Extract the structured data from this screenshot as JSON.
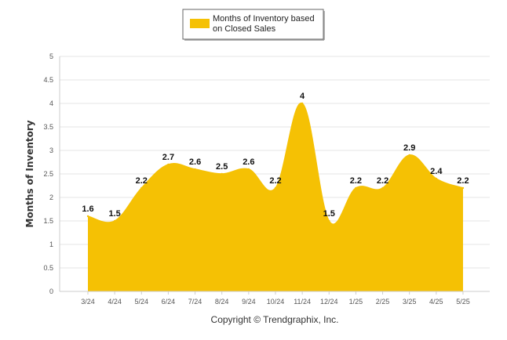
{
  "chart_data": {
    "type": "area",
    "categories": [
      "3/24",
      "4/24",
      "5/24",
      "6/24",
      "7/24",
      "8/24",
      "9/24",
      "10/24",
      "11/24",
      "12/24",
      "1/25",
      "2/25",
      "3/25",
      "4/25",
      "5/25"
    ],
    "series": [
      {
        "name": "Months of Inventory based on Closed Sales",
        "values": [
          1.6,
          1.5,
          2.2,
          2.7,
          2.6,
          2.5,
          2.6,
          2.2,
          4,
          1.5,
          2.2,
          2.2,
          2.9,
          2.4,
          2.2
        ],
        "labels": [
          "1.6",
          "1.5",
          "2.2",
          "2.7",
          "2.6",
          "2.5",
          "2.6",
          "2.2",
          "4",
          "1.5",
          "2.2",
          "2.2",
          "2.9",
          "2.4",
          "2.2"
        ],
        "color": "#F5C104"
      }
    ],
    "ylabel": "Months of Inventory",
    "xlabel": "",
    "ylim": [
      0,
      5
    ],
    "yticks": [
      0,
      0.5,
      1,
      1.5,
      2,
      2.5,
      3,
      3.5,
      4,
      4.5,
      5
    ],
    "ytick_labels": [
      "0",
      "0.5",
      "1",
      "1.5",
      "2",
      "2.5",
      "3",
      "3.5",
      "4",
      "4.5",
      "5"
    ],
    "grid": true,
    "legend": {
      "position": "top-center",
      "line1": "Months of Inventory based",
      "line2": "on Closed Sales"
    }
  },
  "credit": "Copyright © Trendgraphix, Inc.",
  "colors": {
    "area_fill": "#F5C104",
    "gridline": "#E6E6E6",
    "axis": "#CCCCCC"
  }
}
